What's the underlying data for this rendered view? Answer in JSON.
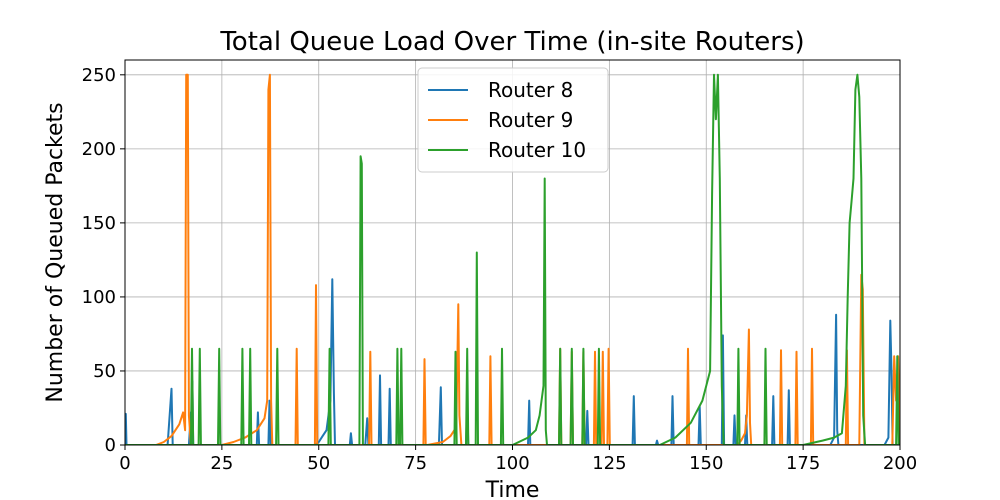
{
  "chart_data": {
    "type": "line",
    "title": "Total Queue Load Over Time (in-site Routers)",
    "xlabel": "Time",
    "ylabel": "Number of Queued Packets",
    "xlim": [
      0,
      200
    ],
    "ylim": [
      0,
      260
    ],
    "xticks": [
      0,
      25,
      50,
      75,
      100,
      125,
      150,
      175,
      200
    ],
    "yticks": [
      0,
      50,
      100,
      150,
      200,
      250
    ],
    "grid": true,
    "legend_position": "upper center",
    "series": [
      {
        "name": "Router 8",
        "color": "#1f77b4",
        "points": [
          [
            0,
            0
          ],
          [
            0.2,
            21
          ],
          [
            0.4,
            0
          ],
          [
            11,
            0
          ],
          [
            12,
            38
          ],
          [
            12.3,
            0
          ],
          [
            16.5,
            0
          ],
          [
            17,
            22
          ],
          [
            17.2,
            0
          ],
          [
            17.4,
            43
          ],
          [
            17.6,
            0
          ],
          [
            34,
            0
          ],
          [
            34.3,
            22
          ],
          [
            34.6,
            0
          ],
          [
            37,
            0
          ],
          [
            37.3,
            30
          ],
          [
            37.6,
            0
          ],
          [
            49,
            0
          ],
          [
            50,
            2
          ],
          [
            51,
            6
          ],
          [
            52,
            10
          ],
          [
            53,
            30
          ],
          [
            53.5,
            112
          ],
          [
            53.9,
            35
          ],
          [
            54.2,
            0
          ],
          [
            58,
            0
          ],
          [
            58.3,
            8
          ],
          [
            58.6,
            0
          ],
          [
            62,
            0
          ],
          [
            62.5,
            18
          ],
          [
            62.8,
            0
          ],
          [
            65.5,
            0
          ],
          [
            65.8,
            47
          ],
          [
            66.1,
            0
          ],
          [
            68,
            0
          ],
          [
            68.3,
            38
          ],
          [
            68.6,
            0
          ],
          [
            81,
            0
          ],
          [
            81.5,
            39
          ],
          [
            81.8,
            0
          ],
          [
            88,
            0
          ],
          [
            88.3,
            30
          ],
          [
            88.6,
            0
          ],
          [
            104,
            0
          ],
          [
            104.3,
            30
          ],
          [
            104.6,
            0
          ],
          [
            119,
            0
          ],
          [
            119.3,
            23
          ],
          [
            119.6,
            0
          ],
          [
            131,
            0
          ],
          [
            131.3,
            33
          ],
          [
            131.6,
            0
          ],
          [
            137,
            0
          ],
          [
            137.3,
            3
          ],
          [
            137.6,
            0
          ],
          [
            141,
            0
          ],
          [
            141.3,
            33
          ],
          [
            141.6,
            0
          ],
          [
            148,
            0
          ],
          [
            148.3,
            26
          ],
          [
            148.6,
            0
          ],
          [
            154,
            0
          ],
          [
            154.3,
            74
          ],
          [
            154.6,
            0
          ],
          [
            157,
            0
          ],
          [
            157.3,
            20
          ],
          [
            157.6,
            0
          ],
          [
            160,
            0
          ],
          [
            160.3,
            20
          ],
          [
            160.6,
            0
          ],
          [
            167,
            0
          ],
          [
            167.3,
            33
          ],
          [
            167.6,
            0
          ],
          [
            171,
            0
          ],
          [
            171.3,
            37
          ],
          [
            171.6,
            0
          ],
          [
            182,
            0
          ],
          [
            183,
            5
          ],
          [
            183.5,
            88
          ],
          [
            183.8,
            10
          ],
          [
            184.1,
            0
          ],
          [
            196,
            0
          ],
          [
            197,
            5
          ],
          [
            197.5,
            84
          ],
          [
            197.8,
            50
          ],
          [
            198.1,
            0
          ],
          [
            200,
            0
          ]
        ]
      },
      {
        "name": "Router 9",
        "color": "#ff7f0e",
        "points": [
          [
            0,
            0
          ],
          [
            8,
            0
          ],
          [
            10,
            2
          ],
          [
            12,
            6
          ],
          [
            14,
            14
          ],
          [
            15,
            22
          ],
          [
            15.5,
            10
          ],
          [
            15.8,
            250
          ],
          [
            16.2,
            250
          ],
          [
            16.5,
            20
          ],
          [
            17,
            0
          ],
          [
            25,
            0
          ],
          [
            28,
            2
          ],
          [
            31,
            5
          ],
          [
            34,
            10
          ],
          [
            36,
            18
          ],
          [
            36.7,
            30
          ],
          [
            37,
            240
          ],
          [
            37.4,
            250
          ],
          [
            37.7,
            30
          ],
          [
            38,
            0
          ],
          [
            44,
            0
          ],
          [
            44.3,
            65
          ],
          [
            44.6,
            0
          ],
          [
            49,
            0
          ],
          [
            49.3,
            108
          ],
          [
            49.6,
            0
          ],
          [
            63,
            0
          ],
          [
            63.3,
            63
          ],
          [
            63.6,
            0
          ],
          [
            77,
            0
          ],
          [
            77.3,
            58
          ],
          [
            77.6,
            0
          ],
          [
            78,
            0
          ],
          [
            82,
            2
          ],
          [
            84,
            6
          ],
          [
            85.5,
            12
          ],
          [
            86,
            95
          ],
          [
            86.3,
            20
          ],
          [
            86.8,
            0
          ],
          [
            94,
            0
          ],
          [
            94.3,
            60
          ],
          [
            94.6,
            0
          ],
          [
            112,
            0
          ],
          [
            112.3,
            65
          ],
          [
            112.6,
            0
          ],
          [
            115,
            0
          ],
          [
            115.3,
            63
          ],
          [
            115.6,
            0
          ],
          [
            118,
            0
          ],
          [
            118.3,
            63
          ],
          [
            118.6,
            0
          ],
          [
            121,
            0
          ],
          [
            121.3,
            63
          ],
          [
            121.6,
            0
          ],
          [
            123,
            0
          ],
          [
            123.3,
            63
          ],
          [
            123.6,
            0
          ],
          [
            124.5,
            0
          ],
          [
            124.8,
            65
          ],
          [
            125.1,
            0
          ],
          [
            145,
            0
          ],
          [
            145.3,
            65
          ],
          [
            145.6,
            0
          ],
          [
            158,
            0
          ],
          [
            159,
            3
          ],
          [
            160,
            8
          ],
          [
            160.5,
            20
          ],
          [
            161,
            78
          ],
          [
            161.3,
            15
          ],
          [
            161.6,
            0
          ],
          [
            169,
            0
          ],
          [
            169.3,
            64
          ],
          [
            169.6,
            0
          ],
          [
            173,
            0
          ],
          [
            173.3,
            63
          ],
          [
            173.6,
            0
          ],
          [
            177,
            0
          ],
          [
            177.3,
            65
          ],
          [
            177.6,
            0
          ],
          [
            186,
            0
          ],
          [
            186.3,
            64
          ],
          [
            186.6,
            0
          ],
          [
            189.5,
            0
          ],
          [
            190,
            115
          ],
          [
            190.4,
            105
          ],
          [
            190.8,
            0
          ],
          [
            198,
            0
          ],
          [
            198.5,
            60
          ],
          [
            199,
            30
          ],
          [
            199.5,
            60
          ],
          [
            200,
            0
          ]
        ]
      },
      {
        "name": "Router 10",
        "color": "#2ca02c",
        "points": [
          [
            0,
            0
          ],
          [
            17,
            0
          ],
          [
            17.3,
            65
          ],
          [
            17.6,
            0
          ],
          [
            19,
            0
          ],
          [
            19.3,
            65
          ],
          [
            19.6,
            0
          ],
          [
            24,
            0
          ],
          [
            24.3,
            65
          ],
          [
            24.6,
            0
          ],
          [
            30,
            0
          ],
          [
            30.3,
            65
          ],
          [
            30.6,
            0
          ],
          [
            32,
            0
          ],
          [
            32.3,
            65
          ],
          [
            32.6,
            0
          ],
          [
            39,
            0
          ],
          [
            39.3,
            65
          ],
          [
            39.6,
            0
          ],
          [
            52.5,
            0
          ],
          [
            52.8,
            65
          ],
          [
            53.1,
            0
          ],
          [
            60.5,
            0
          ],
          [
            60.8,
            195
          ],
          [
            61.1,
            190
          ],
          [
            61.4,
            0
          ],
          [
            70,
            0
          ],
          [
            70.3,
            65
          ],
          [
            70.6,
            0
          ],
          [
            71,
            0
          ],
          [
            71.3,
            65
          ],
          [
            71.6,
            0
          ],
          [
            85,
            0
          ],
          [
            85.3,
            63
          ],
          [
            85.6,
            0
          ],
          [
            88,
            0
          ],
          [
            88.3,
            65
          ],
          [
            88.6,
            0
          ],
          [
            90.5,
            0
          ],
          [
            90.8,
            130
          ],
          [
            91.1,
            0
          ],
          [
            97,
            0
          ],
          [
            97.3,
            65
          ],
          [
            97.6,
            0
          ],
          [
            100,
            0
          ],
          [
            104,
            5
          ],
          [
            106,
            10
          ],
          [
            107,
            20
          ],
          [
            108,
            40
          ],
          [
            108.3,
            180
          ],
          [
            108.6,
            10
          ],
          [
            108.9,
            0
          ],
          [
            112,
            0
          ],
          [
            112.3,
            65
          ],
          [
            112.6,
            0
          ],
          [
            115,
            0
          ],
          [
            115.3,
            65
          ],
          [
            115.6,
            0
          ],
          [
            118,
            0
          ],
          [
            118.3,
            65
          ],
          [
            118.6,
            0
          ],
          [
            122,
            0
          ],
          [
            122.3,
            65
          ],
          [
            122.6,
            0
          ],
          [
            138,
            0
          ],
          [
            142,
            5
          ],
          [
            146,
            15
          ],
          [
            149,
            30
          ],
          [
            151,
            50
          ],
          [
            151.5,
            170
          ],
          [
            152,
            250
          ],
          [
            152.5,
            220
          ],
          [
            153,
            250
          ],
          [
            153.5,
            180
          ],
          [
            154,
            40
          ],
          [
            154.5,
            0
          ],
          [
            158,
            0
          ],
          [
            158.3,
            65
          ],
          [
            158.6,
            0
          ],
          [
            165,
            0
          ],
          [
            165.3,
            65
          ],
          [
            165.6,
            0
          ],
          [
            175,
            0
          ],
          [
            180,
            3
          ],
          [
            183,
            5
          ],
          [
            185,
            8
          ],
          [
            186,
            40
          ],
          [
            186.5,
            100
          ],
          [
            187,
            150
          ],
          [
            187.5,
            165
          ],
          [
            188,
            180
          ],
          [
            188.5,
            240
          ],
          [
            189,
            250
          ],
          [
            189.5,
            235
          ],
          [
            190,
            180
          ],
          [
            190.5,
            20
          ],
          [
            191,
            0
          ],
          [
            199,
            0
          ],
          [
            199.3,
            60
          ],
          [
            199.6,
            0
          ],
          [
            200,
            0
          ]
        ]
      }
    ]
  }
}
